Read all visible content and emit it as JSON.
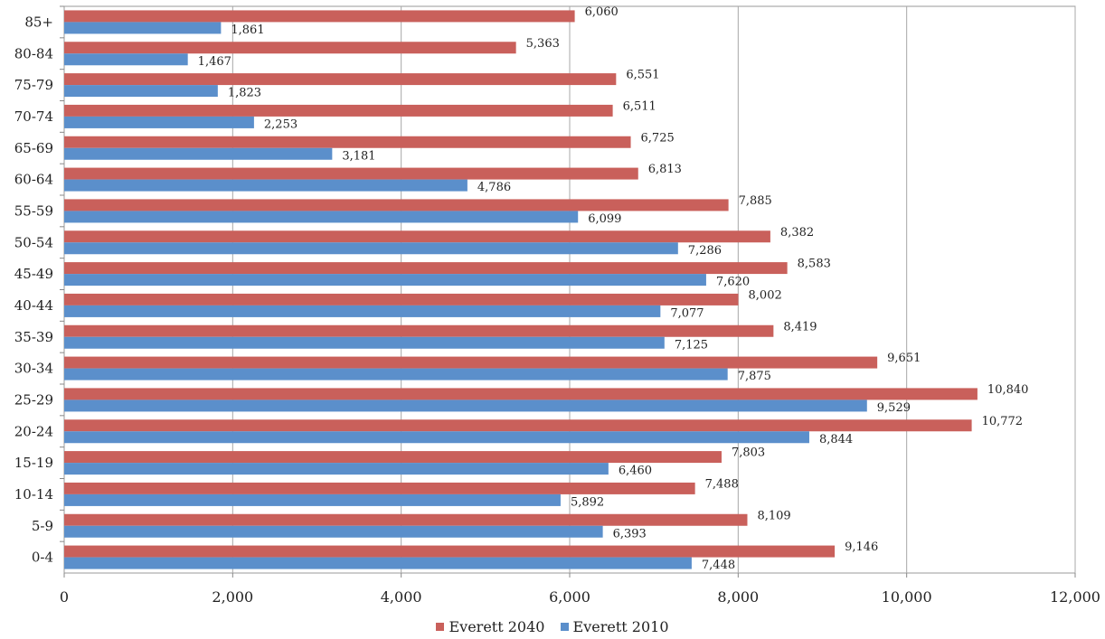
{
  "chart_data": {
    "type": "bar",
    "orientation": "horizontal",
    "categories": [
      "0-4",
      "5-9",
      "10-14",
      "15-19",
      "20-24",
      "25-29",
      "30-34",
      "35-39",
      "40-44",
      "45-49",
      "50-54",
      "55-59",
      "60-64",
      "65-69",
      "70-74",
      "75-79",
      "80-84",
      "85+"
    ],
    "series": [
      {
        "name": "Everett 2040",
        "color": "#c9605b",
        "values": [
          9146,
          8109,
          7488,
          7803,
          10772,
          10840,
          9651,
          8419,
          8002,
          8583,
          8382,
          7885,
          6813,
          6725,
          6511,
          6551,
          5363,
          6060
        ],
        "labels": [
          "9,146",
          "8,109",
          "7,488",
          "7,803",
          "10,772",
          "10,840",
          "9,651",
          "8,419",
          "8,002",
          "8,583",
          "8,382",
          "7,885",
          "6,813",
          "6,725",
          "6,511",
          "6,551",
          "5,363",
          "6,060"
        ]
      },
      {
        "name": "Everett 2010",
        "color": "#5b8fcb",
        "values": [
          7448,
          6393,
          5892,
          6460,
          8844,
          9529,
          7875,
          7125,
          7077,
          7620,
          7286,
          6099,
          4786,
          3181,
          2253,
          1823,
          1467,
          1861
        ],
        "labels": [
          "7,448",
          "6,393",
          "5,892",
          "6,460",
          "8,844",
          "9,529",
          "7,875",
          "7,125",
          "7,077",
          "7,620",
          "7,286",
          "6,099",
          "4,786",
          "3,181",
          "2,253",
          "1,823",
          "1,467",
          "1,861"
        ]
      }
    ],
    "xlim": [
      0,
      12000
    ],
    "xticks": [
      0,
      2000,
      4000,
      6000,
      8000,
      10000,
      12000
    ],
    "xtick_labels": [
      "0",
      "2,000",
      "4,000",
      "6,000",
      "8,000",
      "10,000",
      "12,000"
    ],
    "grid": true,
    "legend_position": "bottom"
  }
}
